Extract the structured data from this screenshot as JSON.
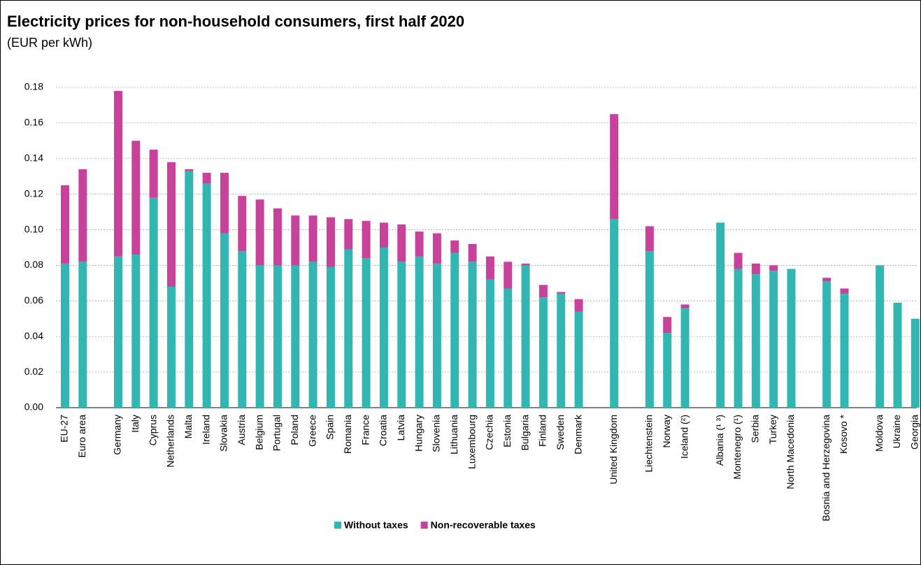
{
  "chart_data": {
    "type": "stacked_bar",
    "title": "Electricity prices for non-household consumers, first half 2020",
    "subtitle": "(EUR per kWh)",
    "categories": [
      "EU-27",
      "Euro area",
      null,
      "Germany",
      "Italy",
      "Cyprus",
      "Netherlands",
      "Malta",
      "Ireland",
      "Slovakia",
      "Austria",
      "Belgium",
      "Portugal",
      "Poland",
      "Greece",
      "Spain",
      "Romania",
      "France",
      "Croatia",
      "Latvia",
      "Hungary",
      "Slovenia",
      "Lithuania",
      "Luxembourg",
      "Czechia",
      "Estonia",
      "Bulgaria",
      "Finland",
      "Sweden",
      "Denmark",
      null,
      "United Kingdom",
      null,
      "Liechtenstein",
      "Norway",
      "Iceland (²)",
      null,
      "Albania (¹ ³)",
      "Montenegro (¹)",
      "Serbia",
      "Turkey",
      "North Macedonia",
      null,
      "Bosnia and Herzegovina",
      "Kosovo *",
      null,
      "Moldova",
      "Ukraine",
      "Georgia"
    ],
    "series": [
      {
        "name": "Without taxes",
        "color": "#31b6b1",
        "values": [
          0.081,
          0.082,
          null,
          0.085,
          0.086,
          0.118,
          0.068,
          0.133,
          0.126,
          0.098,
          0.088,
          0.08,
          0.08,
          0.08,
          0.082,
          0.079,
          0.089,
          0.084,
          0.09,
          0.082,
          0.085,
          0.081,
          0.087,
          0.082,
          0.072,
          0.067,
          0.08,
          0.062,
          0.064,
          0.054,
          null,
          0.106,
          null,
          0.088,
          0.042,
          0.056,
          null,
          0.104,
          0.078,
          0.075,
          0.077,
          0.078,
          null,
          0.071,
          0.064,
          null,
          0.08,
          0.059,
          0.05
        ]
      },
      {
        "name": "Non-recoverable taxes",
        "color": "#c8419a",
        "values": [
          0.044,
          0.052,
          null,
          0.093,
          0.064,
          0.027,
          0.07,
          0.001,
          0.006,
          0.034,
          0.031,
          0.037,
          0.032,
          0.028,
          0.026,
          0.028,
          0.017,
          0.021,
          0.014,
          0.021,
          0.014,
          0.017,
          0.007,
          0.01,
          0.013,
          0.015,
          0.001,
          0.007,
          0.001,
          0.007,
          null,
          0.059,
          null,
          0.014,
          0.009,
          0.002,
          null,
          0,
          0.009,
          0.006,
          0.003,
          0,
          null,
          0.002,
          0.003,
          null,
          0,
          0,
          0
        ]
      }
    ],
    "ylim": [
      0,
      0.18
    ],
    "yticks": [
      {
        "value": 0,
        "label": "0.00"
      },
      0.02,
      0.04,
      0.06,
      0.08,
      {
        "value": 0.1,
        "label": "0.10"
      },
      0.12,
      0.14,
      0.16,
      0.18
    ],
    "grid": true,
    "legend": "bottom"
  }
}
